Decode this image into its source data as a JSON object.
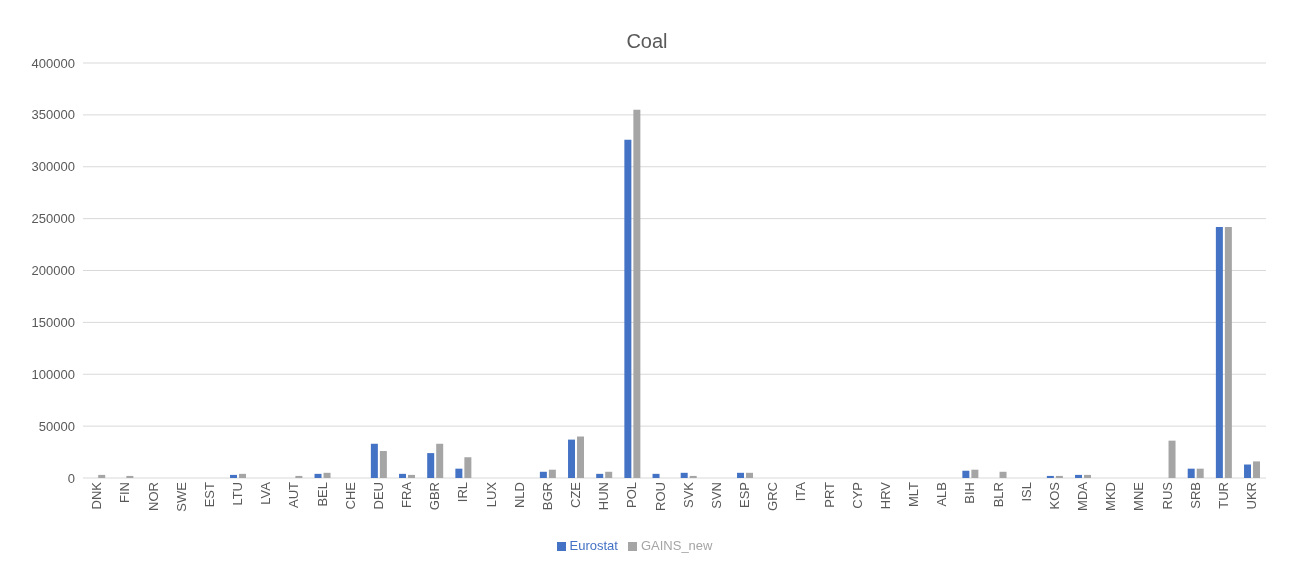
{
  "chart_data": {
    "type": "bar",
    "title": "Coal",
    "categories": [
      "DNK",
      "FIN",
      "NOR",
      "SWE",
      "EST",
      "LTU",
      "LVA",
      "AUT",
      "BEL",
      "CHE",
      "DEU",
      "FRA",
      "GBR",
      "IRL",
      "LUX",
      "NLD",
      "BGR",
      "CZE",
      "HUN",
      "POL",
      "ROU",
      "SVK",
      "SVN",
      "ESP",
      "GRC",
      "ITA",
      "PRT",
      "CYP",
      "HRV",
      "MLT",
      "ALB",
      "BIH",
      "BLR",
      "ISL",
      "KOS",
      "MDA",
      "MKD",
      "MNE",
      "RUS",
      "SRB",
      "TUR",
      "UKR"
    ],
    "series": [
      {
        "name": "Eurostat",
        "color": "#4472c4",
        "values": [
          0,
          0,
          0,
          0,
          0,
          3000,
          0,
          0,
          4000,
          0,
          33000,
          4000,
          24000,
          9000,
          0,
          0,
          6000,
          37000,
          4000,
          326000,
          4000,
          5000,
          0,
          5000,
          0,
          0,
          0,
          0,
          0,
          0,
          0,
          7000,
          0,
          0,
          2000,
          3000,
          0,
          0,
          0,
          9000,
          242000,
          13000
        ]
      },
      {
        "name": "GAINS_new",
        "color": "#a5a5a5",
        "values": [
          3000,
          2000,
          0,
          0,
          0,
          4000,
          0,
          2000,
          5000,
          0,
          26000,
          3000,
          33000,
          20000,
          0,
          0,
          8000,
          40000,
          6000,
          355000,
          0,
          2000,
          0,
          5000,
          0,
          0,
          0,
          0,
          0,
          0,
          0,
          8000,
          6000,
          0,
          2000,
          3000,
          0,
          0,
          36000,
          9000,
          242000,
          16000
        ]
      }
    ],
    "ylim": [
      0,
      400000
    ],
    "yticks": [
      0,
      50000,
      100000,
      150000,
      200000,
      250000,
      300000,
      350000,
      400000
    ],
    "grid": "y",
    "legend": "bottom"
  }
}
